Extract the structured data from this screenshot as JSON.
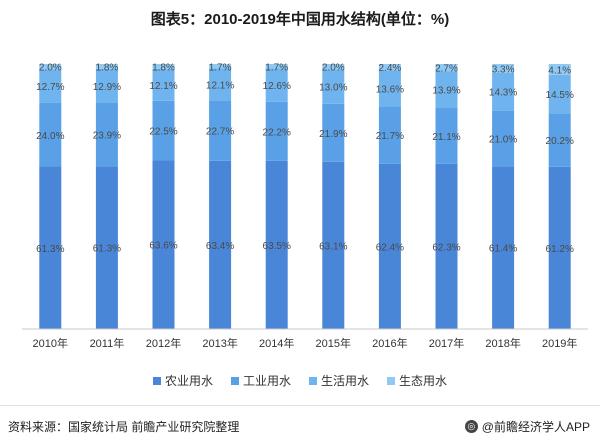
{
  "chart_data": {
    "type": "bar",
    "stacked": true,
    "title": "图表5：2010-2019年中国用水结构(单位：%)",
    "categories": [
      "2010年",
      "2011年",
      "2012年",
      "2013年",
      "2014年",
      "2015年",
      "2016年",
      "2017年",
      "2018年",
      "2019年"
    ],
    "ylim": [
      0,
      100
    ],
    "series": [
      {
        "name": "农业用水",
        "color": "#4a86d8",
        "values": [
          61.3,
          61.3,
          63.6,
          63.4,
          63.5,
          63.1,
          62.4,
          62.3,
          61.4,
          61.2
        ]
      },
      {
        "name": "工业用水",
        "color": "#5aa0e6",
        "values": [
          24.0,
          23.9,
          22.5,
          22.7,
          22.2,
          21.9,
          21.7,
          21.1,
          21.0,
          20.2
        ]
      },
      {
        "name": "生活用水",
        "color": "#6fb4ee",
        "values": [
          12.7,
          12.9,
          12.1,
          12.1,
          12.6,
          13.0,
          13.6,
          13.9,
          14.3,
          14.5
        ]
      },
      {
        "name": "生态用水",
        "color": "#8fcaf5",
        "values": [
          2.0,
          1.8,
          1.8,
          1.7,
          1.7,
          2.0,
          2.4,
          2.7,
          3.3,
          4.1
        ]
      }
    ],
    "legend_position": "bottom",
    "grid": false
  },
  "legend": {
    "items": [
      {
        "label": "农业用水",
        "color": "#4a86d8"
      },
      {
        "label": "工业用水",
        "color": "#5aa0e6"
      },
      {
        "label": "生活用水",
        "color": "#6fb4ee"
      },
      {
        "label": "生态用水",
        "color": "#8fcaf5"
      }
    ]
  },
  "footer": {
    "source": "资料来源：国家统计局 前瞻产业研究院整理",
    "brand": "@前瞻经济学人APP"
  }
}
